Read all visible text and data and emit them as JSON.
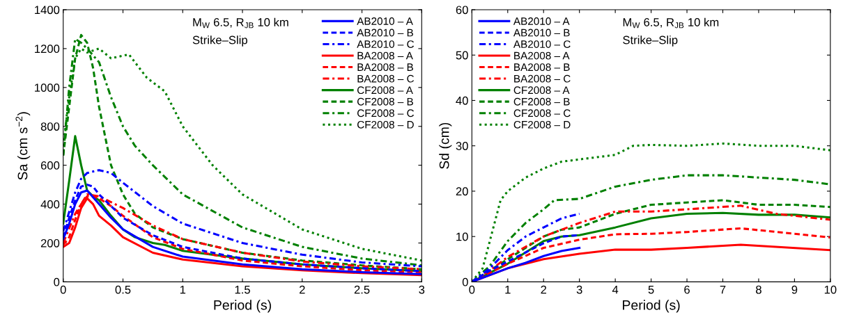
{
  "chart_data": [
    {
      "type": "line",
      "xlabel": "Period (s)",
      "ylabel": "Sa (cm s$^{−2}$)",
      "xlim": [
        0,
        3
      ],
      "ylim": [
        0,
        1400
      ],
      "xticks": [
        0,
        0.5,
        1,
        1.5,
        2,
        2.5,
        3
      ],
      "yticks": [
        0,
        200,
        400,
        600,
        800,
        1000,
        1200,
        1400
      ],
      "grid": false,
      "legend": "top right",
      "annotations": [
        "M$_{W}$ 6.5, R$_{JB}$ 10 km",
        "Strike–Slip"
      ],
      "series": [
        {
          "name": "AB2010 – A",
          "color": "#0000ff",
          "line_style": "solid",
          "x": [
            0,
            0.05,
            0.1,
            0.15,
            0.2,
            0.3,
            0.4,
            0.5,
            0.75,
            1,
            1.5,
            2,
            2.5,
            3
          ],
          "values": [
            220,
            300,
            400,
            460,
            470,
            400,
            330,
            270,
            180,
            130,
            90,
            65,
            50,
            40
          ]
        },
        {
          "name": "AB2010 – B",
          "color": "#0000ff",
          "line_style": "dashed",
          "x": [
            0,
            0.05,
            0.1,
            0.15,
            0.2,
            0.25,
            0.3,
            0.4,
            0.5,
            0.75,
            1,
            1.5,
            2,
            2.5,
            3
          ],
          "values": [
            230,
            330,
            420,
            490,
            500,
            490,
            450,
            390,
            330,
            240,
            180,
            120,
            90,
            70,
            55
          ]
        },
        {
          "name": "AB2010 – C",
          "color": "#0000ff",
          "line_style": "dashdot",
          "x": [
            0,
            0.05,
            0.1,
            0.15,
            0.2,
            0.3,
            0.4,
            0.5,
            0.75,
            1,
            1.5,
            2,
            2.5,
            3
          ],
          "values": [
            260,
            360,
            460,
            530,
            560,
            575,
            560,
            510,
            390,
            300,
            200,
            140,
            100,
            80
          ]
        },
        {
          "name": "BA2008 – A",
          "color": "#ff0000",
          "line_style": "solid",
          "x": [
            0,
            0.05,
            0.1,
            0.15,
            0.2,
            0.25,
            0.3,
            0.4,
            0.5,
            0.75,
            1,
            1.5,
            2,
            2.5,
            3
          ],
          "values": [
            180,
            200,
            280,
            380,
            430,
            400,
            340,
            290,
            230,
            150,
            115,
            80,
            60,
            45,
            35
          ]
        },
        {
          "name": "BA2008 – B",
          "color": "#ff0000",
          "line_style": "dashed",
          "x": [
            0,
            0.05,
            0.1,
            0.15,
            0.2,
            0.25,
            0.3,
            0.4,
            0.5,
            0.75,
            1,
            1.5,
            2,
            2.5,
            3
          ],
          "values": [
            190,
            230,
            320,
            400,
            440,
            440,
            430,
            390,
            340,
            230,
            170,
            110,
            80,
            60,
            50
          ]
        },
        {
          "name": "BA2008 – C",
          "color": "#ff0000",
          "line_style": "dashdot",
          "x": [
            0,
            0.1,
            0.2,
            0.3,
            0.5,
            0.75,
            1,
            1.5,
            2,
            2.5,
            3
          ],
          "values": [
            200,
            350,
            450,
            440,
            380,
            290,
            220,
            150,
            105,
            80,
            65
          ]
        },
        {
          "name": "CF2008 – A",
          "color": "#008000",
          "line_style": "solid",
          "x": [
            0,
            0.05,
            0.1,
            0.15,
            0.2,
            0.25,
            0.3,
            0.4,
            0.5,
            0.6,
            0.75,
            0.85,
            1,
            1.5,
            2,
            2.5,
            3
          ],
          "values": [
            300,
            520,
            750,
            600,
            470,
            440,
            420,
            340,
            270,
            230,
            200,
            190,
            160,
            120,
            90,
            70,
            55
          ]
        },
        {
          "name": "CF2008 – B",
          "color": "#008000",
          "line_style": "dashed",
          "x": [
            0,
            0.05,
            0.1,
            0.15,
            0.2,
            0.25,
            0.3,
            0.4,
            0.5,
            0.6,
            0.75,
            1,
            1.5,
            2,
            2.5,
            3
          ],
          "values": [
            650,
            900,
            1150,
            1270,
            1230,
            1100,
            900,
            600,
            450,
            350,
            280,
            220,
            150,
            110,
            85,
            65
          ]
        },
        {
          "name": "CF2008 – C",
          "color": "#008000",
          "line_style": "dashdot",
          "x": [
            0,
            0.05,
            0.1,
            0.15,
            0.2,
            0.3,
            0.4,
            0.5,
            0.6,
            0.75,
            1,
            1.5,
            2,
            2.5,
            3
          ],
          "values": [
            650,
            1000,
            1250,
            1230,
            1200,
            1130,
            950,
            800,
            700,
            600,
            450,
            280,
            180,
            120,
            85
          ]
        },
        {
          "name": "CF2008 – D",
          "color": "#008000",
          "line_style": "dotted",
          "x": [
            0,
            0.05,
            0.1,
            0.15,
            0.2,
            0.3,
            0.4,
            0.55,
            0.7,
            0.85,
            1,
            1.25,
            1.5,
            2,
            2.5,
            3
          ],
          "values": [
            700,
            950,
            1150,
            1200,
            1180,
            1200,
            1150,
            1170,
            1050,
            980,
            800,
            600,
            450,
            270,
            170,
            110
          ]
        }
      ]
    },
    {
      "type": "line",
      "xlabel": "Period (s)",
      "ylabel": "Sd (cm)",
      "xlim": [
        0,
        10
      ],
      "ylim": [
        0,
        60
      ],
      "xticks": [
        0,
        1,
        2,
        3,
        4,
        5,
        6,
        7,
        8,
        9,
        10
      ],
      "yticks": [
        0,
        10,
        20,
        30,
        40,
        50,
        60
      ],
      "grid": false,
      "legend": "top left",
      "annotations": [
        "M$_{W}$ 6.5, R$_{JB}$ 10 km",
        "Strike–Slip"
      ],
      "series": [
        {
          "name": "AB2010 – A",
          "color": "#0000ff",
          "line_style": "solid",
          "x": [
            0,
            0.5,
            1,
            1.5,
            2,
            2.5,
            3
          ],
          "values": [
            0,
            1.5,
            3,
            4.2,
            5.7,
            6.8,
            7.5
          ]
        },
        {
          "name": "AB2010 – B",
          "color": "#0000ff",
          "line_style": "dashed",
          "x": [
            0,
            0.5,
            1,
            1.5,
            2,
            2.5,
            3
          ],
          "values": [
            0,
            2.5,
            4.5,
            6.5,
            8.5,
            10,
            10.3
          ]
        },
        {
          "name": "AB2010 – C",
          "color": "#0000ff",
          "line_style": "dashdot",
          "x": [
            0,
            0.5,
            1,
            1.5,
            2,
            2.5,
            3
          ],
          "values": [
            0,
            3,
            7,
            10,
            12,
            14,
            15
          ]
        },
        {
          "name": "BA2008 – A",
          "color": "#ff0000",
          "line_style": "solid",
          "x": [
            0,
            0.5,
            1,
            2,
            3,
            4,
            5,
            6,
            7.5,
            10
          ],
          "values": [
            0,
            1.5,
            3,
            5,
            6.2,
            7.1,
            7.1,
            7.5,
            8.2,
            7
          ]
        },
        {
          "name": "BA2008 – B",
          "color": "#ff0000",
          "line_style": "dashed",
          "x": [
            0,
            0.5,
            1,
            2,
            3,
            4,
            5,
            6,
            7.5,
            10
          ],
          "values": [
            0,
            2,
            4,
            7.5,
            9.3,
            10.5,
            10.6,
            11,
            11.8,
            9.8
          ]
        },
        {
          "name": "BA2008 – C",
          "color": "#ff0000",
          "line_style": "dashdot",
          "x": [
            0,
            0.5,
            1,
            2,
            3,
            4,
            5,
            6,
            7.5,
            8.5,
            10
          ],
          "values": [
            0,
            2.5,
            5.5,
            10,
            13,
            15.5,
            15.5,
            16,
            16.8,
            15,
            13.7
          ]
        },
        {
          "name": "CF2008 – A",
          "color": "#008000",
          "line_style": "solid",
          "x": [
            0,
            0.5,
            1,
            1.5,
            2,
            2.5,
            3,
            4,
            5,
            6,
            7,
            8,
            9,
            10
          ],
          "values": [
            0,
            2,
            4,
            6.5,
            9,
            10,
            10.3,
            12,
            14,
            15,
            15.2,
            14.8,
            14.8,
            14.2
          ]
        },
        {
          "name": "CF2008 – B",
          "color": "#008000",
          "line_style": "dashed",
          "x": [
            0,
            0.5,
            1,
            1.5,
            2,
            2.5,
            3,
            4,
            5,
            6,
            7,
            8,
            9,
            10
          ],
          "values": [
            0,
            2.5,
            5,
            7.5,
            10,
            11.5,
            12,
            15,
            17,
            17.5,
            18,
            17,
            17,
            16.5
          ]
        },
        {
          "name": "CF2008 – C",
          "color": "#008000",
          "line_style": "dashdot",
          "x": [
            0,
            0.5,
            1,
            1.5,
            2,
            2.3,
            3,
            4,
            5,
            6,
            7,
            8,
            9,
            10
          ],
          "values": [
            0,
            3.5,
            9,
            13,
            16,
            18,
            18.3,
            21,
            22.5,
            23.5,
            23.5,
            23,
            22.5,
            21.5
          ]
        },
        {
          "name": "CF2008 – D",
          "color": "#008000",
          "line_style": "dotted",
          "x": [
            0,
            0.3,
            0.5,
            0.8,
            1,
            1.5,
            2,
            2.5,
            3,
            4,
            4.5,
            5,
            6,
            7,
            8,
            9,
            10
          ],
          "values": [
            0,
            3,
            9,
            18,
            20,
            23,
            25,
            26.5,
            27,
            28,
            30,
            30.2,
            30,
            30.5,
            30,
            30,
            29
          ]
        }
      ]
    }
  ]
}
